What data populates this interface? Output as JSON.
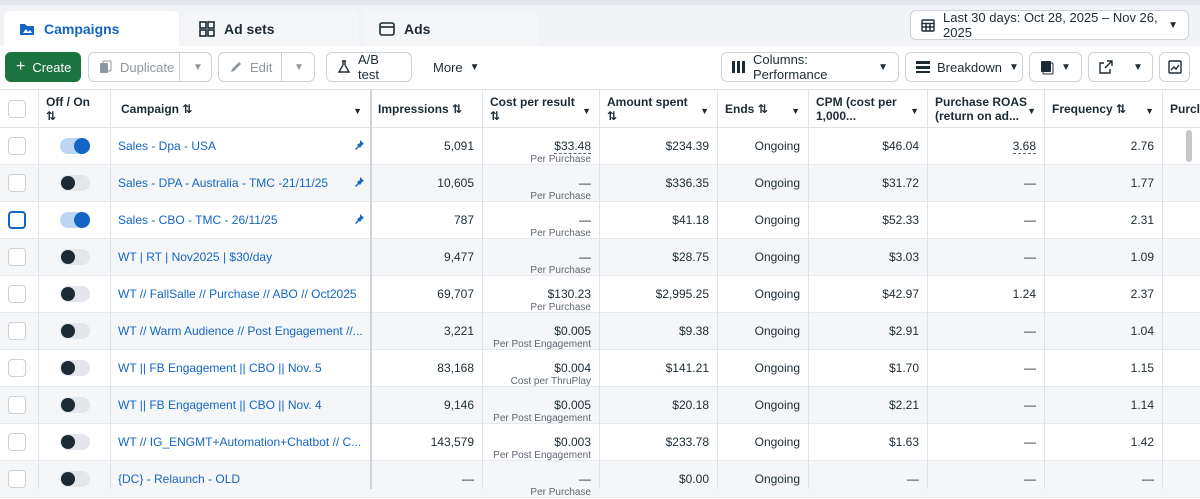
{
  "tabs": [
    {
      "label": "Campaigns",
      "icon": "folder-icon"
    },
    {
      "label": "Ad sets",
      "icon": "grid-icon"
    },
    {
      "label": "Ads",
      "icon": "ad-frame-icon"
    }
  ],
  "date_range": "Last 30 days: Oct 28, 2025 – Nov 26, 2025",
  "toolbar": {
    "create": "Create",
    "duplicate": "Duplicate",
    "edit": "Edit",
    "ab_test": "A/B test",
    "more": "More",
    "columns": "Columns: Performance",
    "breakdown": "Breakdown"
  },
  "columns": {
    "off_on": "Off / On",
    "campaign": "Campaign",
    "impressions": "Impressions",
    "cost_per_result": "Cost per result",
    "amount_spent": "Amount spent",
    "ends": "Ends",
    "cpm_1": "CPM (cost per",
    "cpm_2": "1,000...",
    "roas_1": "Purchase ROAS",
    "roas_2": "(return on ad...",
    "frequency": "Frequency",
    "purchases": "Purcl"
  },
  "rows": [
    {
      "on": true,
      "pinned": true,
      "name": "Sales - Dpa - USA",
      "impressions": "5,091",
      "cpr": "$33.48",
      "cpr_sub": "Per Purchase",
      "spent": "$234.39",
      "ends": "Ongoing",
      "cpm": "$46.04",
      "roas": "3.68",
      "freq": "2.76"
    },
    {
      "on": false,
      "pinned": true,
      "name": "Sales - DPA - Australia - TMC -21/11/25",
      "impressions": "10,605",
      "cpr": "—",
      "cpr_sub": "Per Purchase",
      "spent": "$336.35",
      "ends": "Ongoing",
      "cpm": "$31.72",
      "roas": "—",
      "freq": "1.77"
    },
    {
      "on": true,
      "pinned": true,
      "name": "Sales - CBO - TMC - 26/11/25",
      "impressions": "787",
      "cpr": "—",
      "cpr_sub": "Per Purchase",
      "spent": "$41.18",
      "ends": "Ongoing",
      "cpm": "$52.33",
      "roas": "—",
      "freq": "2.31"
    },
    {
      "on": false,
      "pinned": false,
      "name": "WT | RT | Nov2025 | $30/day",
      "impressions": "9,477",
      "cpr": "—",
      "cpr_sub": "Per Purchase",
      "spent": "$28.75",
      "ends": "Ongoing",
      "cpm": "$3.03",
      "roas": "—",
      "freq": "1.09"
    },
    {
      "on": false,
      "pinned": false,
      "name": "WT // FallSalle // Purchase // ABO // Oct2025",
      "impressions": "69,707",
      "cpr": "$130.23",
      "cpr_sub": "Per Purchase",
      "spent": "$2,995.25",
      "ends": "Ongoing",
      "cpm": "$42.97",
      "roas": "1.24",
      "freq": "2.37"
    },
    {
      "on": false,
      "pinned": false,
      "name": "WT // Warm Audience // Post Engagement //...",
      "impressions": "3,221",
      "cpr": "$0.005",
      "cpr_sub": "Per Post Engagement",
      "spent": "$9.38",
      "ends": "Ongoing",
      "cpm": "$2.91",
      "roas": "—",
      "freq": "1.04"
    },
    {
      "on": false,
      "pinned": false,
      "name": "WT || FB Engagement || CBO || Nov. 5",
      "impressions": "83,168",
      "cpr": "$0.004",
      "cpr_sub": "Cost per ThruPlay",
      "spent": "$141.21",
      "ends": "Ongoing",
      "cpm": "$1.70",
      "roas": "—",
      "freq": "1.15"
    },
    {
      "on": false,
      "pinned": false,
      "name": "WT || FB Engagement || CBO || Nov. 4",
      "impressions": "9,146",
      "cpr": "$0.005",
      "cpr_sub": "Per Post Engagement",
      "spent": "$20.18",
      "ends": "Ongoing",
      "cpm": "$2.21",
      "roas": "—",
      "freq": "1.14"
    },
    {
      "on": false,
      "pinned": false,
      "name": "WT // IG_ENGMT+Automation+Chatbot // C...",
      "impressions": "143,579",
      "cpr": "$0.003",
      "cpr_sub": "Per Post Engagement",
      "spent": "$233.78",
      "ends": "Ongoing",
      "cpm": "$1.63",
      "roas": "—",
      "freq": "1.42"
    },
    {
      "on": false,
      "pinned": false,
      "name": "{DC} - Relaunch - OLD",
      "impressions": "—",
      "cpr": "—",
      "cpr_sub": "Per Purchase",
      "spent": "$0.00",
      "ends": "Ongoing",
      "cpm": "—",
      "roas": "—",
      "freq": "—"
    }
  ],
  "colors": {
    "accent": "#1366c4",
    "create_green": "#1b7340"
  }
}
